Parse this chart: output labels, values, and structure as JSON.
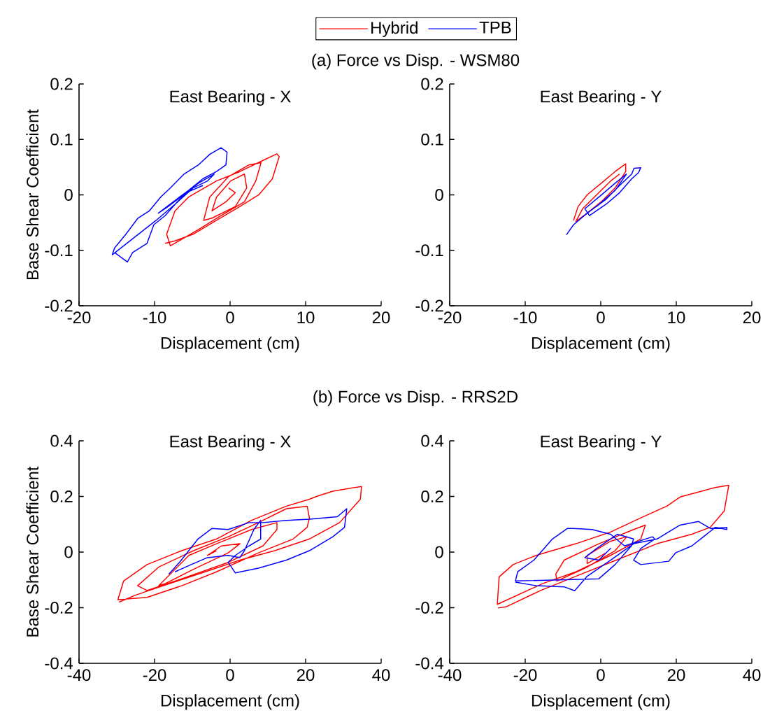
{
  "chart_data": [
    {
      "type": "line",
      "title": "(a) Force vs Disp. - WSM80",
      "subtitle": "East Bearing - X",
      "xlabel": "Displacement (cm)",
      "ylabel": "Base Shear Coefficient",
      "xlim": [
        -20,
        20
      ],
      "ylim": [
        -0.2,
        0.2
      ],
      "xticks": [
        -20,
        -10,
        0,
        10,
        20
      ],
      "yticks": [
        -0.2,
        -0.1,
        0,
        0.1,
        0.2
      ],
      "legend": "top",
      "series": [
        {
          "name": "Hybrid",
          "color": "#ff0000",
          "x": [
            -8.6,
            -7.3,
            -4.9,
            -1.8,
            1.3,
            3.8,
            5.6,
            6.5,
            6.2,
            4.4,
            1.3,
            -1.8,
            -5.5,
            -7.3,
            -8.4,
            -7.9,
            -4.2,
            -1.2,
            1.9,
            3.4,
            4.1,
            2.5,
            -0.2,
            -2.7,
            -3.5,
            -2.4,
            0.7,
            2.2,
            1.9,
            0.06,
            -1.8,
            -2.4,
            -0.55,
            0.7,
            -0.2
          ],
          "values": [
            -0.0875,
            -0.083,
            -0.071,
            -0.046,
            -0.021,
            0,
            0.029,
            0.069,
            0.074,
            0.0625,
            0.042,
            0.025,
            -0.004,
            -0.029,
            -0.071,
            -0.092,
            -0.0625,
            -0.0375,
            -0.0125,
            0.025,
            0.058,
            0.054,
            0.033,
            -0.004,
            -0.046,
            -0.042,
            -0.021,
            0.0125,
            0.0375,
            0.025,
            -0.004,
            -0.029,
            -0.0125,
            0.004,
            0.0125
          ]
        },
        {
          "name": "TPB",
          "color": "#0000ff",
          "x": [
            -15.3,
            -13.6,
            -12.9,
            -11.0,
            -10.1,
            -8.6,
            -7.0,
            -5.5,
            -3.6,
            -1.8,
            -0.55,
            -0.4,
            -1.2,
            -2.7,
            -4.2,
            -6.1,
            -7.9,
            -9.2,
            -10.7,
            -12.2,
            -13.8,
            -15.3,
            -15.6,
            -9.8,
            -7.3,
            -4.9,
            -3.0,
            -2.1,
            -4.2,
            -6.7,
            -9.5,
            -8.2,
            -5.8,
            -3.6
          ],
          "values": [
            -0.104,
            -0.121,
            -0.104,
            -0.0875,
            -0.054,
            -0.0375,
            -0.0125,
            0.008,
            0.029,
            0.042,
            0.054,
            0.077,
            0.085,
            0.073,
            0.054,
            0.0375,
            0.0125,
            -0.004,
            -0.029,
            -0.042,
            -0.071,
            -0.096,
            -0.108,
            -0.046,
            -0.017,
            0.0125,
            0.025,
            0.0375,
            0.021,
            -0.004,
            -0.033,
            -0.021,
            0.004,
            0.017
          ]
        }
      ]
    },
    {
      "type": "line",
      "title": "East Bearing - Y",
      "xlabel": "Displacement (cm)",
      "xlim": [
        -20,
        20
      ],
      "ylim": [
        -0.2,
        0.2
      ],
      "xticks": [
        -20,
        -10,
        0,
        10,
        20
      ],
      "yticks": [
        -0.2,
        -0.1,
        0,
        0.1,
        0.2
      ],
      "series": [
        {
          "color": "#ff0000",
          "x": [
            -3.6,
            -3.0,
            -1.8,
            0.06,
            1.9,
            3.3,
            3.3,
            1.9,
            0.06,
            -1.8,
            -3.3,
            -2.4,
            -0.55,
            1.3,
            2.5
          ],
          "values": [
            -0.046,
            -0.021,
            0,
            0.021,
            0.042,
            0.056,
            0.042,
            0.0125,
            -0.0125,
            -0.033,
            -0.048,
            -0.025,
            0,
            0.025,
            0.0375
          ]
        },
        {
          "color": "#0000ff",
          "x": [
            -4.55,
            -3.6,
            -1.8,
            0.7,
            2.5,
            4.1,
            4.4,
            5.3,
            5.0,
            4.1,
            2.5,
            0.7,
            -1.5,
            -2.1,
            -0.25,
            1.9,
            3.4,
            1.9,
            -0.55
          ],
          "values": [
            -0.072,
            -0.054,
            -0.033,
            -0.008,
            0.017,
            0.0375,
            0.048,
            0.049,
            0.04,
            0.029,
            0.004,
            -0.017,
            -0.0375,
            -0.025,
            -0.004,
            0.021,
            0.0375,
            0.008,
            -0.021
          ]
        }
      ]
    },
    {
      "type": "line",
      "title": "(b) Force vs Disp. - RRS2D",
      "subtitle": "East Bearing - X",
      "xlabel": "Displacement (cm)",
      "ylabel": "Base Shear Coefficient",
      "xlim": [
        -40,
        40
      ],
      "ylim": [
        -0.4,
        0.4
      ],
      "xticks": [
        -40,
        -20,
        0,
        20,
        40
      ],
      "yticks": [
        -0.4,
        -0.2,
        0,
        0.2,
        0.4
      ],
      "series": [
        {
          "color": "#ff0000",
          "x": [
            -29.4,
            -25.1,
            -15.9,
            -6.6,
            2.6,
            11.8,
            21.0,
            29.0,
            34.5,
            34.8,
            27.2,
            22.9,
            21.0,
            14.9,
            5.7,
            -3.6,
            -12.8,
            -22.0,
            -28.2,
            -29.7,
            -22.0,
            -12.8,
            -3.6,
            7.5,
            16.7,
            20.4,
            21.0,
            20.4,
            14.9,
            7.5,
            -0.5,
            -9.7,
            -18.9,
            -24.5,
            -22.0,
            -12.8,
            -0.5,
            8.7,
            12.4,
            12.4,
            5.7,
            -3.6,
            -10.9,
            -18.9,
            -17.1,
            -9.7,
            -0.5,
            2.6,
            -2.3,
            -6.0,
            -3.6
          ],
          "values": [
            -0.18,
            -0.155,
            -0.113,
            -0.071,
            -0.029,
            0.005,
            0.047,
            0.106,
            0.19,
            0.236,
            0.219,
            0.2,
            0.19,
            0.165,
            0.114,
            0.047,
            0.005,
            -0.045,
            -0.104,
            -0.171,
            -0.163,
            -0.121,
            -0.071,
            -0.003,
            0.047,
            0.089,
            0.123,
            0.165,
            0.156,
            0.106,
            0.055,
            0.005,
            -0.054,
            -0.121,
            -0.138,
            -0.096,
            -0.037,
            0.022,
            0.081,
            0.106,
            0.081,
            0.03,
            -0.012,
            -0.121,
            -0.113,
            -0.062,
            -0.003,
            0.03,
            0.022,
            -0.012,
            0.005
          ]
        },
        {
          "color": "#0000ff",
          "x": [
            -16.2,
            -13.4,
            -8.5,
            -4.8,
            -0.5,
            5.0,
            8.7,
            14.9,
            21.0,
            28.4,
            30.9,
            30.3,
            27.2,
            21.0,
            14.9,
            7.5,
            1.4,
            -0.5,
            1.4,
            5.0,
            8.1,
            8.1,
            6.3,
            3.8,
            2.6,
            -0.5,
            -6.0,
            -10.3,
            -14.6
          ],
          "values": [
            -0.079,
            -0.037,
            0.047,
            0.085,
            0.081,
            0.106,
            0.106,
            0.114,
            0.118,
            0.127,
            0.156,
            0.089,
            0.055,
            0.005,
            -0.029,
            -0.058,
            -0.075,
            -0.037,
            -0.012,
            0.022,
            0.047,
            0.114,
            0.081,
            0.005,
            -0.02,
            -0.012,
            -0.02,
            -0.045,
            -0.071
          ]
        }
      ]
    },
    {
      "type": "line",
      "title": "East Bearing - Y",
      "xlabel": "Displacement (cm)",
      "xlim": [
        -40,
        40
      ],
      "ylim": [
        -0.4,
        0.4
      ],
      "xticks": [
        -40,
        -20,
        0,
        20,
        40
      ],
      "yticks": [
        -0.4,
        -0.2,
        0,
        0.2,
        0.4
      ],
      "series": [
        {
          "color": "#ff0000",
          "x": [
            -27.2,
            -25.1,
            -15.9,
            -6.6,
            2.6,
            14.9,
            24.1,
            29.0,
            32.7,
            33.9,
            30.3,
            21.0,
            17.5,
            10.6,
            2.6,
            -6.6,
            -17.1,
            -23.2,
            -26.9,
            -27.4,
            -15.3,
            -6.6,
            2.6,
            10.6,
            11.8,
            8.7,
            -0.5,
            -9.7,
            -11.9,
            -11.6,
            -3.6,
            3.8,
            6.9,
            2.6,
            -3.6,
            -3.6,
            1.4
          ],
          "values": [
            -0.201,
            -0.197,
            -0.138,
            -0.087,
            -0.037,
            0.03,
            0.064,
            0.089,
            0.148,
            0.24,
            0.232,
            0.198,
            0.165,
            0.123,
            0.072,
            0.03,
            -0.012,
            -0.045,
            -0.089,
            -0.188,
            -0.113,
            -0.071,
            -0.012,
            0.047,
            0.097,
            0.081,
            0.03,
            -0.029,
            -0.079,
            -0.104,
            -0.054,
            0.005,
            0.055,
            0.039,
            -0.012,
            -0.041,
            -0.003
          ]
        },
        {
          "color": "#0000ff",
          "x": [
            -22.6,
            -17.1,
            -9.7,
            -6.9,
            -3.6,
            2.6,
            8.7,
            14.9,
            21.0,
            25.9,
            29.0,
            33.4,
            33.4,
            30.3,
            27.2,
            24.1,
            19.8,
            18.0,
            10.6,
            8.7,
            10.6,
            14.3,
            13.7,
            6.3,
            2.6,
            -2.3,
            -7.3,
            -8.8,
            -12.8,
            -17.7,
            -22.0,
            -22.6,
            -0.5,
            3.8,
            8.1,
            8.7,
            4.4,
            -1.1,
            -4.2,
            -0.5,
            2.6,
            1.4
          ],
          "values": [
            -0.108,
            -0.121,
            -0.125,
            -0.139,
            -0.087,
            -0.029,
            0.03,
            0.047,
            0.097,
            0.11,
            0.085,
            0.089,
            0.081,
            0.089,
            0.055,
            0.022,
            -0.003,
            -0.033,
            -0.045,
            -0.029,
            0.013,
            0.047,
            0.055,
            0.022,
            0.064,
            0.081,
            0.085,
            0.085,
            0.047,
            -0.029,
            -0.071,
            -0.104,
            -0.096,
            -0.045,
            0.022,
            0.047,
            0.064,
            0.013,
            -0.02,
            -0.029,
            0.013,
            -0.003
          ]
        }
      ]
    }
  ]
}
